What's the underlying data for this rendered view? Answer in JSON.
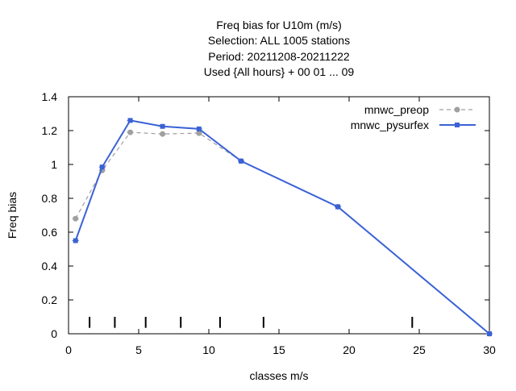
{
  "chart_data": {
    "type": "line",
    "title_lines": [
      "Freq bias  for U10m (m/s)",
      "Selection: ALL    1005 stations",
      "Period: 20211208-20211222",
      "Used {All hours} + 00 01 ... 09"
    ],
    "xlabel": "classes m/s",
    "ylabel": "Freq bias",
    "xlim": [
      0,
      30
    ],
    "ylim": [
      0,
      1.4
    ],
    "xticks": [
      0,
      5,
      10,
      15,
      20,
      25,
      30
    ],
    "xtick_labels": [
      "0",
      "5",
      "10",
      "15",
      "20",
      "25",
      "30"
    ],
    "yticks": [
      0,
      0.2,
      0.4,
      0.6,
      0.8,
      1,
      1.2,
      1.4
    ],
    "ytick_labels": [
      "0",
      "0.2",
      "0.4",
      "0.6",
      "0.8",
      "1",
      "1.2",
      "1.4"
    ],
    "grid": false,
    "legend_position": "top-right",
    "class_limits": [
      1.5,
      3.3,
      5.5,
      8.0,
      10.8,
      13.9,
      24.5
    ],
    "series": [
      {
        "name": "mnwc_preop",
        "color": "#a0a0a0",
        "style": "dashed",
        "marker": "circle",
        "x": [
          0.5,
          2.4,
          4.4,
          6.7,
          9.3,
          12.3,
          19.2,
          30
        ],
        "y": [
          0.68,
          0.965,
          1.19,
          1.18,
          1.185,
          1.02,
          0.75,
          0.0
        ]
      },
      {
        "name": "mnwc_pysurfex",
        "color": "#3a62d6",
        "style": "solid",
        "marker": "square",
        "x": [
          0.5,
          2.4,
          4.4,
          6.7,
          9.3,
          12.3,
          19.2,
          30
        ],
        "y": [
          0.55,
          0.985,
          1.26,
          1.225,
          1.21,
          1.02,
          0.75,
          0.0
        ]
      }
    ]
  }
}
